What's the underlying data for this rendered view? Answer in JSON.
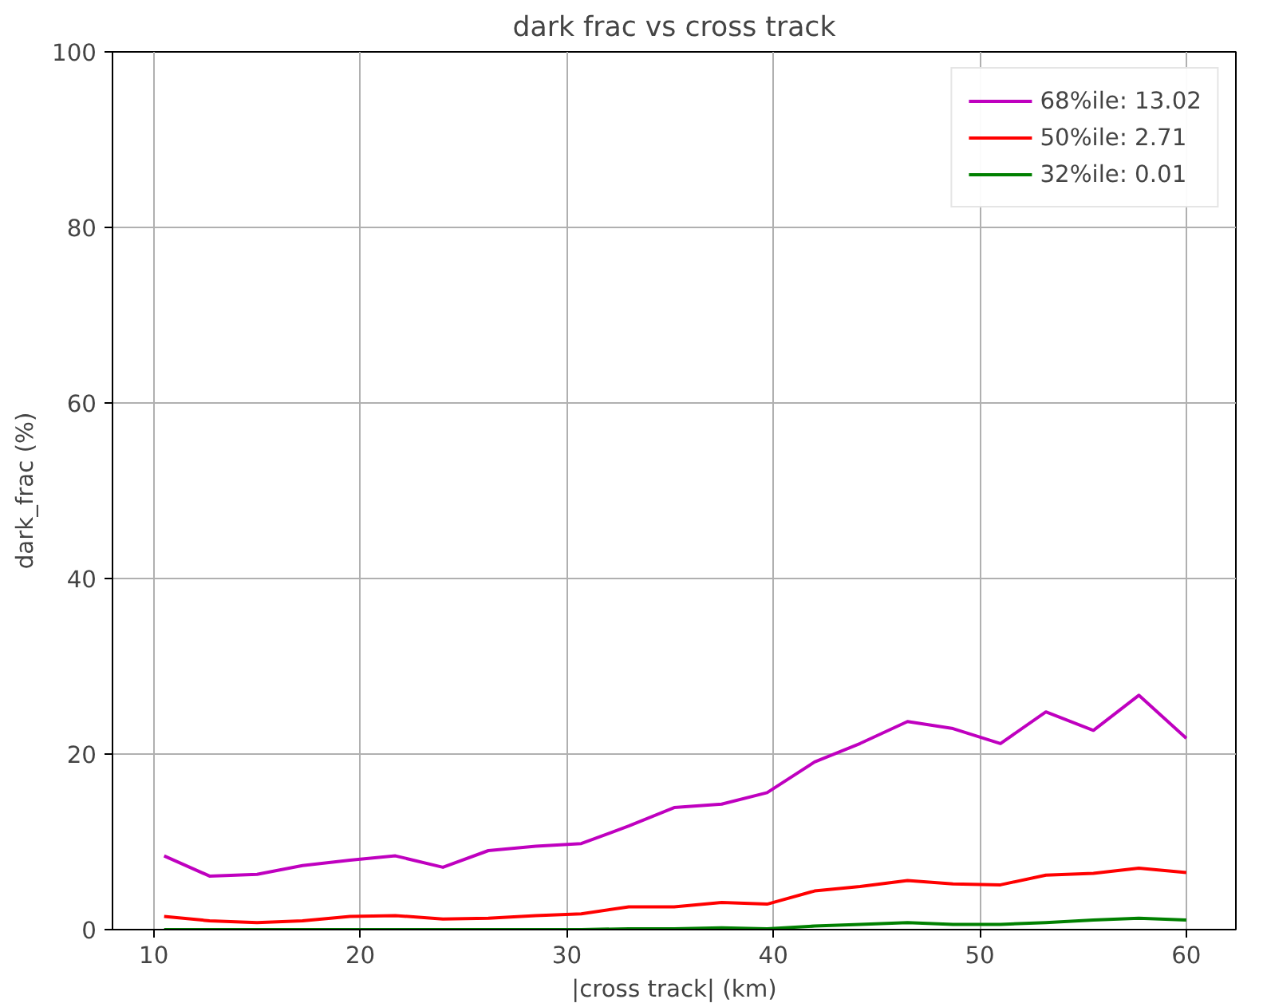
{
  "chart_data": {
    "type": "line",
    "title": "dark frac vs cross track",
    "xlabel": "|cross track| (km)",
    "ylabel": "dark_frac (%)",
    "x": [
      10.5,
      12.7,
      15.0,
      17.2,
      19.5,
      21.7,
      24.0,
      26.2,
      28.5,
      30.7,
      33.0,
      35.2,
      37.5,
      39.7,
      42.0,
      44.2,
      46.5,
      48.7,
      51.0,
      53.2,
      55.5,
      57.7,
      60.0
    ],
    "series": [
      {
        "name": "68%ile: 13.02",
        "color": "#bf00bf",
        "values": [
          8.4,
          6.1,
          6.3,
          7.3,
          7.9,
          8.4,
          7.1,
          9.0,
          9.5,
          9.8,
          11.8,
          13.9,
          14.3,
          15.6,
          19.1,
          21.2,
          23.7,
          22.9,
          21.2,
          24.8,
          22.7,
          26.7,
          21.8
        ]
      },
      {
        "name": "50%ile: 2.71",
        "color": "#ff0000",
        "values": [
          1.5,
          1.0,
          0.8,
          1.0,
          1.5,
          1.6,
          1.2,
          1.3,
          1.6,
          1.8,
          2.6,
          2.6,
          3.1,
          2.9,
          4.4,
          4.9,
          5.6,
          5.2,
          5.1,
          6.2,
          6.4,
          7.0,
          6.5
        ]
      },
      {
        "name": "32%ile: 0.01",
        "color": "#008000",
        "values": [
          0,
          0,
          0,
          0,
          0,
          0,
          0,
          0,
          0,
          0,
          0.1,
          0.1,
          0.2,
          0.1,
          0.4,
          0.6,
          0.8,
          0.6,
          0.6,
          0.8,
          1.1,
          1.3,
          1.1
        ]
      }
    ],
    "xlim": [
      8.0,
      62.4
    ],
    "ylim": [
      0,
      100
    ],
    "xticks": [
      10,
      20,
      30,
      40,
      50,
      60
    ],
    "yticks": [
      0,
      20,
      40,
      60,
      80,
      100
    ],
    "grid": true,
    "legend": "top right",
    "line_style": "solid",
    "marker": "none"
  }
}
